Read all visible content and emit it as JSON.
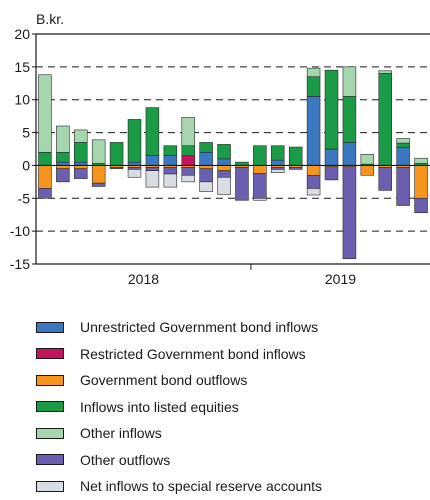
{
  "chart_data": {
    "type": "bar",
    "stacked": true,
    "unit": "B.kr.",
    "ylim": [
      -15,
      20
    ],
    "yticks": [
      20,
      15,
      10,
      5,
      0,
      -5,
      -10,
      -15
    ],
    "grid": "dashed horizontal",
    "legend_position": "bottom",
    "x_groups": [
      {
        "label": "2018",
        "start": 1,
        "end": 12
      },
      {
        "label": "2019",
        "start": 13,
        "end": 22
      }
    ],
    "x": [
      1,
      2,
      3,
      4,
      5,
      6,
      7,
      8,
      9,
      10,
      11,
      12,
      13,
      14,
      15,
      16,
      17,
      18,
      19,
      20,
      21,
      22
    ],
    "series": [
      {
        "name": "Unrestricted Government bond inflows",
        "color": "#3a78c2",
        "values": [
          0,
          0.5,
          0.5,
          0,
          0,
          0.5,
          1.5,
          1.5,
          0,
          2,
          1,
          0,
          0,
          0.8,
          0,
          10.5,
          2.5,
          3.5,
          0,
          0,
          2.7,
          0
        ]
      },
      {
        "name": "Restricted Government bond inflows",
        "color": "#c4145a",
        "values": [
          0,
          0,
          0,
          0,
          0,
          0,
          0,
          0,
          1.5,
          0,
          0,
          0,
          0,
          0,
          0,
          0,
          0,
          0,
          0,
          0,
          0,
          0
        ]
      },
      {
        "name": "Government bond outflows",
        "color": "#f7941d",
        "values": [
          -3.5,
          -0.5,
          -0.5,
          -2.7,
          -0.3,
          -0.3,
          -0.3,
          -0.3,
          -0.3,
          -0.5,
          -0.8,
          -0.3,
          -1.2,
          -0.3,
          -0.3,
          -1.5,
          -0.2,
          -0.2,
          -1.5,
          -0.3,
          -0.3,
          -5
        ]
      },
      {
        "name": "Inflows into listed equities",
        "color": "#1a9b45",
        "values": [
          2,
          1.5,
          3,
          0.3,
          3.5,
          6.5,
          7.3,
          1.5,
          1.5,
          1.5,
          2.2,
          0.5,
          3,
          2.2,
          2.8,
          3,
          12,
          7,
          0.2,
          14,
          0.7,
          0.3
        ]
      },
      {
        "name": "Other inflows",
        "color": "#a5d6ad",
        "values": [
          11.8,
          4,
          1.9,
          3.6,
          0,
          0,
          0,
          0,
          4.3,
          0,
          0,
          0,
          0,
          0,
          0,
          1.3,
          0,
          4.5,
          1.5,
          0.4,
          0.7,
          0.8
        ]
      },
      {
        "name": "Other outflows",
        "color": "#6b5fb0",
        "values": [
          -1.5,
          -2,
          -1.5,
          -0.5,
          -0.2,
          -0.3,
          -0.5,
          -1,
          -1.2,
          -2,
          -1,
          -5,
          -3.8,
          -0.3,
          -0.3,
          -2,
          -2,
          -14,
          0,
          -3.5,
          -5.8,
          -2.2
        ]
      },
      {
        "name": "Net inflows to special reserve accounts",
        "color": "#d7dde3",
        "values": [
          0,
          0,
          0,
          0,
          0,
          -1.2,
          -2.5,
          -2,
          -1,
          -1.5,
          -2.6,
          0,
          -0.3,
          -0.5,
          0,
          -1,
          0,
          0,
          0,
          0,
          0,
          0
        ]
      }
    ]
  }
}
